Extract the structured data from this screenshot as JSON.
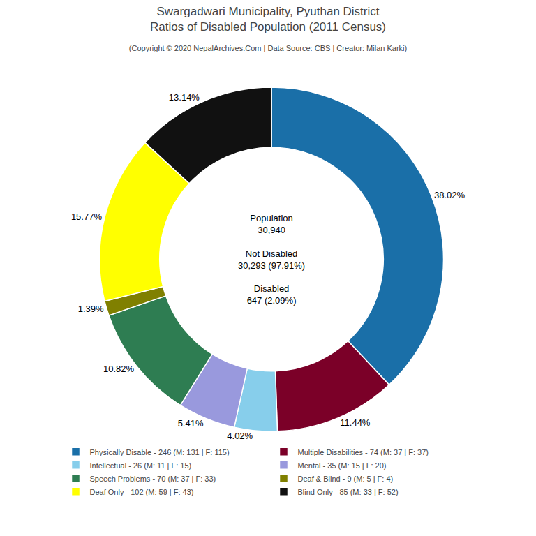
{
  "chart_data": {
    "type": "pie",
    "title": [
      "Swargadwari Municipality, Pyuthan District",
      "Ratios of Disabled Population (2011 Census)"
    ],
    "subtitle": "(Copyright © 2020 NepalArchives.Com | Data Source: CBS | Creator: Milan Karki)",
    "categories": [
      "Physically Disable - 246 (M: 131 | F: 115)",
      "Multiple Disabilities - 74 (M: 37 | F: 37)",
      "Intellectual - 26 (M: 11 | F: 15)",
      "Mental - 35 (M: 15 | F: 20)",
      "Speech Problems - 70 (M: 37 | F: 33)",
      "Deaf & Blind - 9 (M: 5 | F: 4)",
      "Deaf Only - 102 (M: 59 | F: 43)",
      "Blind Only - 85 (M: 33 | F: 52)"
    ],
    "values": [
      38.02,
      11.44,
      4.02,
      5.41,
      10.82,
      1.39,
      15.77,
      13.14
    ],
    "value_labels": [
      "38.02%",
      "11.44%",
      "4.02%",
      "5.41%",
      "10.82%",
      "1.39%",
      "15.77%",
      "13.14%"
    ],
    "data_labels": true,
    "colors": [
      "#1a6fa8",
      "#7b0028",
      "#87ceeb",
      "#9999dd",
      "#2e7d52",
      "#808000",
      "#ffff00",
      "#111111"
    ],
    "annotations": [
      {
        "text": "Population\n30,940\n\nNot Disabled\n30,293 (97.91%)\n\nDisabled\n647 (2.09%)"
      }
    ],
    "legend": "bottom"
  }
}
